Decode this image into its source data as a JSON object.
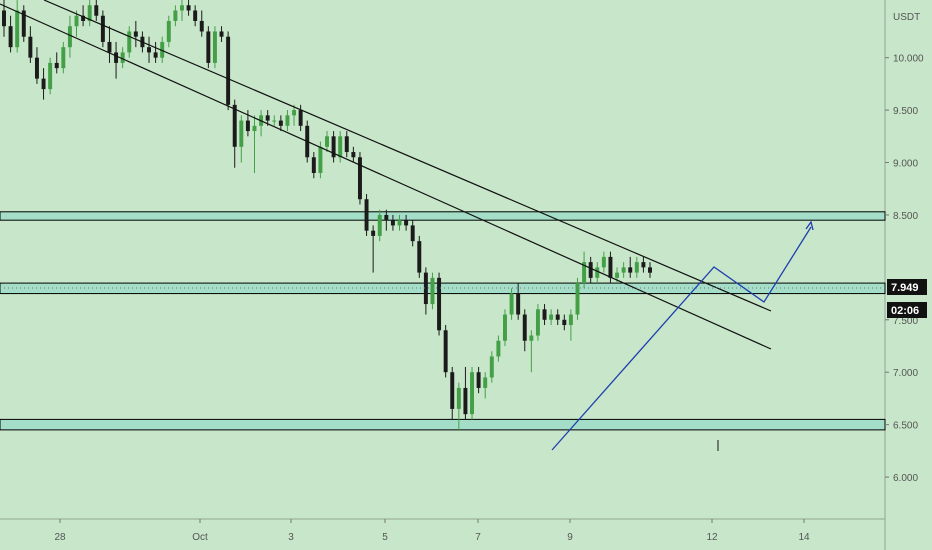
{
  "chart_data": {
    "type": "candlestick",
    "currency_label": "USDT",
    "last_price": "7.949",
    "countdown": "02:06",
    "y_ticks": [
      "10.000",
      "9.500",
      "9.000",
      "8.500",
      "7.500",
      "7.000",
      "6.500",
      "6.000"
    ],
    "x_ticks": [
      "28",
      "Oct",
      "3",
      "5",
      "7",
      "9",
      "12",
      "14"
    ],
    "ylim": [
      5.6,
      10.55
    ],
    "grid": false,
    "support_resistance_zones": [
      [
        8.45,
        8.53
      ],
      [
        7.75,
        7.85
      ],
      [
        6.45,
        6.55
      ]
    ],
    "colors": {
      "background": "#c8e6c9",
      "up": "#43a047",
      "down": "#1b1b1b",
      "zone_fill": "#a5dec8",
      "zone_border": "#000000",
      "projection": "#1e3fb0",
      "price_tag": "#111111"
    },
    "candles": [
      {
        "o": 10.45,
        "h": 10.6,
        "l": 10.2,
        "c": 10.3
      },
      {
        "o": 10.3,
        "h": 10.4,
        "l": 10.05,
        "c": 10.1
      },
      {
        "o": 10.1,
        "h": 10.55,
        "l": 10.05,
        "c": 10.45
      },
      {
        "o": 10.45,
        "h": 10.5,
        "l": 10.15,
        "c": 10.2
      },
      {
        "o": 10.2,
        "h": 10.3,
        "l": 9.95,
        "c": 10.0
      },
      {
        "o": 10.0,
        "h": 10.1,
        "l": 9.75,
        "c": 9.8
      },
      {
        "o": 9.8,
        "h": 9.9,
        "l": 9.6,
        "c": 9.7
      },
      {
        "o": 9.7,
        "h": 10.0,
        "l": 9.65,
        "c": 9.95
      },
      {
        "o": 9.95,
        "h": 10.05,
        "l": 9.85,
        "c": 9.9
      },
      {
        "o": 9.9,
        "h": 10.15,
        "l": 9.85,
        "c": 10.1
      },
      {
        "o": 10.1,
        "h": 10.4,
        "l": 10.0,
        "c": 10.3
      },
      {
        "o": 10.3,
        "h": 10.45,
        "l": 10.2,
        "c": 10.4
      },
      {
        "o": 10.4,
        "h": 10.5,
        "l": 10.3,
        "c": 10.35
      },
      {
        "o": 10.35,
        "h": 10.55,
        "l": 10.3,
        "c": 10.5
      },
      {
        "o": 10.5,
        "h": 10.55,
        "l": 10.35,
        "c": 10.4
      },
      {
        "o": 10.4,
        "h": 10.45,
        "l": 10.1,
        "c": 10.15
      },
      {
        "o": 10.15,
        "h": 10.3,
        "l": 9.95,
        "c": 10.05
      },
      {
        "o": 10.05,
        "h": 10.15,
        "l": 9.8,
        "c": 9.95
      },
      {
        "o": 9.95,
        "h": 10.1,
        "l": 9.9,
        "c": 10.05
      },
      {
        "o": 10.05,
        "h": 10.3,
        "l": 10.0,
        "c": 10.25
      },
      {
        "o": 10.25,
        "h": 10.35,
        "l": 10.1,
        "c": 10.2
      },
      {
        "o": 10.2,
        "h": 10.25,
        "l": 10.05,
        "c": 10.1
      },
      {
        "o": 10.1,
        "h": 10.2,
        "l": 9.95,
        "c": 10.05
      },
      {
        "o": 10.05,
        "h": 10.15,
        "l": 9.95,
        "c": 10.0
      },
      {
        "o": 10.0,
        "h": 10.2,
        "l": 9.95,
        "c": 10.15
      },
      {
        "o": 10.15,
        "h": 10.4,
        "l": 10.1,
        "c": 10.35
      },
      {
        "o": 10.35,
        "h": 10.5,
        "l": 10.3,
        "c": 10.45
      },
      {
        "o": 10.45,
        "h": 10.55,
        "l": 10.35,
        "c": 10.5
      },
      {
        "o": 10.5,
        "h": 10.55,
        "l": 10.4,
        "c": 10.45
      },
      {
        "o": 10.45,
        "h": 10.5,
        "l": 10.3,
        "c": 10.35
      },
      {
        "o": 10.35,
        "h": 10.45,
        "l": 10.2,
        "c": 10.25
      },
      {
        "o": 10.25,
        "h": 10.3,
        "l": 9.9,
        "c": 9.95
      },
      {
        "o": 9.95,
        "h": 10.3,
        "l": 9.9,
        "c": 10.25
      },
      {
        "o": 10.25,
        "h": 10.3,
        "l": 10.15,
        "c": 10.2
      },
      {
        "o": 10.2,
        "h": 10.25,
        "l": 9.5,
        "c": 9.55
      },
      {
        "o": 9.55,
        "h": 9.6,
        "l": 8.95,
        "c": 9.15
      },
      {
        "o": 9.15,
        "h": 9.45,
        "l": 9.0,
        "c": 9.4
      },
      {
        "o": 9.4,
        "h": 9.5,
        "l": 9.25,
        "c": 9.3
      },
      {
        "o": 9.3,
        "h": 9.45,
        "l": 8.9,
        "c": 9.35
      },
      {
        "o": 9.35,
        "h": 9.5,
        "l": 9.25,
        "c": 9.45
      },
      {
        "o": 9.45,
        "h": 9.5,
        "l": 9.35,
        "c": 9.4
      },
      {
        "o": 9.4,
        "h": 9.45,
        "l": 9.35,
        "c": 9.4
      },
      {
        "o": 9.4,
        "h": 9.45,
        "l": 9.3,
        "c": 9.35
      },
      {
        "o": 9.35,
        "h": 9.5,
        "l": 9.3,
        "c": 9.45
      },
      {
        "o": 9.45,
        "h": 9.55,
        "l": 9.35,
        "c": 9.5
      },
      {
        "o": 9.5,
        "h": 9.55,
        "l": 9.3,
        "c": 9.35
      },
      {
        "o": 9.35,
        "h": 9.4,
        "l": 9.0,
        "c": 9.05
      },
      {
        "o": 9.05,
        "h": 9.1,
        "l": 8.85,
        "c": 8.9
      },
      {
        "o": 8.9,
        "h": 9.2,
        "l": 8.85,
        "c": 9.15
      },
      {
        "o": 9.15,
        "h": 9.3,
        "l": 9.1,
        "c": 9.25
      },
      {
        "o": 9.25,
        "h": 9.3,
        "l": 9.0,
        "c": 9.05
      },
      {
        "o": 9.05,
        "h": 9.3,
        "l": 9.0,
        "c": 9.25
      },
      {
        "o": 9.25,
        "h": 9.3,
        "l": 9.05,
        "c": 9.1
      },
      {
        "o": 9.1,
        "h": 9.15,
        "l": 9.0,
        "c": 9.05
      },
      {
        "o": 9.05,
        "h": 9.1,
        "l": 8.6,
        "c": 8.65
      },
      {
        "o": 8.65,
        "h": 8.7,
        "l": 8.3,
        "c": 8.35
      },
      {
        "o": 8.35,
        "h": 8.4,
        "l": 7.95,
        "c": 8.3
      },
      {
        "o": 8.3,
        "h": 8.55,
        "l": 8.25,
        "c": 8.5
      },
      {
        "o": 8.5,
        "h": 8.55,
        "l": 8.35,
        "c": 8.45
      },
      {
        "o": 8.45,
        "h": 8.5,
        "l": 8.35,
        "c": 8.4
      },
      {
        "o": 8.4,
        "h": 8.5,
        "l": 8.35,
        "c": 8.45
      },
      {
        "o": 8.45,
        "h": 8.5,
        "l": 8.35,
        "c": 8.4
      },
      {
        "o": 8.4,
        "h": 8.45,
        "l": 8.2,
        "c": 8.25
      },
      {
        "o": 8.25,
        "h": 8.3,
        "l": 7.9,
        "c": 7.95
      },
      {
        "o": 7.95,
        "h": 8.0,
        "l": 7.55,
        "c": 7.65
      },
      {
        "o": 7.65,
        "h": 7.95,
        "l": 7.6,
        "c": 7.9
      },
      {
        "o": 7.9,
        "h": 7.95,
        "l": 7.35,
        "c": 7.4
      },
      {
        "o": 7.4,
        "h": 7.45,
        "l": 6.95,
        "c": 7.0
      },
      {
        "o": 7.0,
        "h": 7.05,
        "l": 6.55,
        "c": 6.65
      },
      {
        "o": 6.65,
        "h": 6.9,
        "l": 6.45,
        "c": 6.85
      },
      {
        "o": 6.85,
        "h": 7.05,
        "l": 6.55,
        "c": 6.6
      },
      {
        "o": 6.6,
        "h": 7.05,
        "l": 6.55,
        "c": 7.0
      },
      {
        "o": 7.0,
        "h": 7.05,
        "l": 6.8,
        "c": 6.85
      },
      {
        "o": 6.85,
        "h": 7.0,
        "l": 6.75,
        "c": 6.95
      },
      {
        "o": 6.95,
        "h": 7.2,
        "l": 6.9,
        "c": 7.15
      },
      {
        "o": 7.15,
        "h": 7.35,
        "l": 7.1,
        "c": 7.3
      },
      {
        "o": 7.3,
        "h": 7.6,
        "l": 7.25,
        "c": 7.55
      },
      {
        "o": 7.55,
        "h": 7.8,
        "l": 7.5,
        "c": 7.75
      },
      {
        "o": 7.75,
        "h": 7.85,
        "l": 7.5,
        "c": 7.55
      },
      {
        "o": 7.55,
        "h": 7.6,
        "l": 7.2,
        "c": 7.3
      },
      {
        "o": 7.3,
        "h": 7.4,
        "l": 7.0,
        "c": 7.35
      },
      {
        "o": 7.35,
        "h": 7.65,
        "l": 7.3,
        "c": 7.6
      },
      {
        "o": 7.6,
        "h": 7.65,
        "l": 7.45,
        "c": 7.5
      },
      {
        "o": 7.5,
        "h": 7.6,
        "l": 7.45,
        "c": 7.55
      },
      {
        "o": 7.55,
        "h": 7.6,
        "l": 7.45,
        "c": 7.5
      },
      {
        "o": 7.5,
        "h": 7.55,
        "l": 7.4,
        "c": 7.45
      },
      {
        "o": 7.45,
        "h": 7.6,
        "l": 7.3,
        "c": 7.55
      },
      {
        "o": 7.55,
        "h": 7.9,
        "l": 7.5,
        "c": 7.85
      },
      {
        "o": 7.85,
        "h": 8.15,
        "l": 7.8,
        "c": 8.05
      },
      {
        "o": 8.05,
        "h": 8.1,
        "l": 7.85,
        "c": 7.9
      },
      {
        "o": 7.9,
        "h": 8.05,
        "l": 7.85,
        "c": 8.0
      },
      {
        "o": 8.0,
        "h": 8.15,
        "l": 7.95,
        "c": 8.1
      },
      {
        "o": 8.1,
        "h": 8.15,
        "l": 7.85,
        "c": 7.9
      },
      {
        "o": 7.9,
        "h": 8.0,
        "l": 7.85,
        "c": 7.95
      },
      {
        "o": 7.95,
        "h": 8.05,
        "l": 7.9,
        "c": 8.0
      },
      {
        "o": 8.0,
        "h": 8.1,
        "l": 7.9,
        "c": 7.95
      },
      {
        "o": 7.95,
        "h": 8.1,
        "l": 7.9,
        "c": 8.05
      },
      {
        "o": 8.05,
        "h": 8.1,
        "l": 7.95,
        "c": 8.0
      },
      {
        "o": 8.0,
        "h": 8.05,
        "l": 7.9,
        "c": 7.949
      }
    ]
  }
}
